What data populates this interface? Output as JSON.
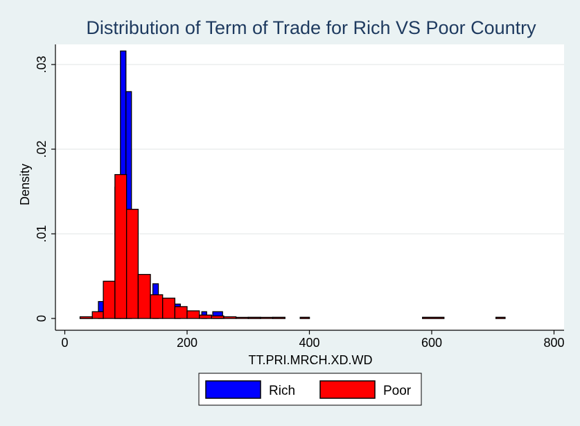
{
  "chart_data": {
    "type": "bar",
    "title": "Distribution of Term of Trade for Rich VS Poor Country",
    "xlabel": "TT.PRI.MRCH.XD.WD",
    "ylabel": "Density",
    "xlim": [
      0,
      800
    ],
    "ylim": [
      0,
      0.032
    ],
    "x_ticks": [
      "0",
      "200",
      "400",
      "600",
      "800"
    ],
    "y_ticks": [
      "0",
      ".01",
      ".02",
      ".03"
    ],
    "x_tick_values": [
      0,
      200,
      400,
      600,
      800
    ],
    "y_tick_values": [
      0,
      0.01,
      0.02,
      0.03
    ],
    "grid": true,
    "legend_position": "bottom",
    "series": [
      {
        "name": "Rich",
        "color": "#0000ff",
        "bins": [
          {
            "x0": 25,
            "x1": 45,
            "value": 0.0001
          },
          {
            "x0": 55,
            "x1": 63,
            "value": 0.002
          },
          {
            "x0": 82,
            "x1": 91,
            "value": 0.0155
          },
          {
            "x0": 91,
            "x1": 100,
            "value": 0.0316
          },
          {
            "x0": 100,
            "x1": 109,
            "value": 0.0268
          },
          {
            "x0": 144,
            "x1": 153,
            "value": 0.0041
          },
          {
            "x0": 180,
            "x1": 189,
            "value": 0.0017
          },
          {
            "x0": 224,
            "x1": 232,
            "value": 0.0008
          },
          {
            "x0": 242,
            "x1": 258,
            "value": 0.0008
          },
          {
            "x0": 300,
            "x1": 320,
            "value": 0.0001
          },
          {
            "x0": 340,
            "x1": 360,
            "value": 0.0001
          },
          {
            "x0": 385,
            "x1": 400,
            "value": 0.0001
          },
          {
            "x0": 585,
            "x1": 620,
            "value": 0.0001
          },
          {
            "x0": 705,
            "x1": 720,
            "value": 0.0001
          }
        ]
      },
      {
        "name": "Poor",
        "color": "#ff0000",
        "bins": [
          {
            "x0": 25,
            "x1": 45,
            "value": 0.0002
          },
          {
            "x0": 45,
            "x1": 63,
            "value": 0.0008
          },
          {
            "x0": 63,
            "x1": 82,
            "value": 0.0044
          },
          {
            "x0": 82,
            "x1": 101,
            "value": 0.017
          },
          {
            "x0": 101,
            "x1": 120,
            "value": 0.0129
          },
          {
            "x0": 120,
            "x1": 140,
            "value": 0.0052
          },
          {
            "x0": 140,
            "x1": 160,
            "value": 0.0028
          },
          {
            "x0": 160,
            "x1": 180,
            "value": 0.0024
          },
          {
            "x0": 180,
            "x1": 200,
            "value": 0.0014
          },
          {
            "x0": 200,
            "x1": 220,
            "value": 0.0009
          },
          {
            "x0": 220,
            "x1": 240,
            "value": 0.0004
          },
          {
            "x0": 240,
            "x1": 260,
            "value": 0.0003
          },
          {
            "x0": 260,
            "x1": 280,
            "value": 0.0002
          },
          {
            "x0": 280,
            "x1": 300,
            "value": 0.0001
          },
          {
            "x0": 300,
            "x1": 320,
            "value": 0.0001
          },
          {
            "x0": 320,
            "x1": 340,
            "value": 0.0001
          },
          {
            "x0": 340,
            "x1": 360,
            "value": 0.0001
          },
          {
            "x0": 385,
            "x1": 400,
            "value": 0.0001
          },
          {
            "x0": 585,
            "x1": 620,
            "value": 0.0001
          },
          {
            "x0": 705,
            "x1": 720,
            "value": 0.0001
          }
        ]
      }
    ]
  }
}
